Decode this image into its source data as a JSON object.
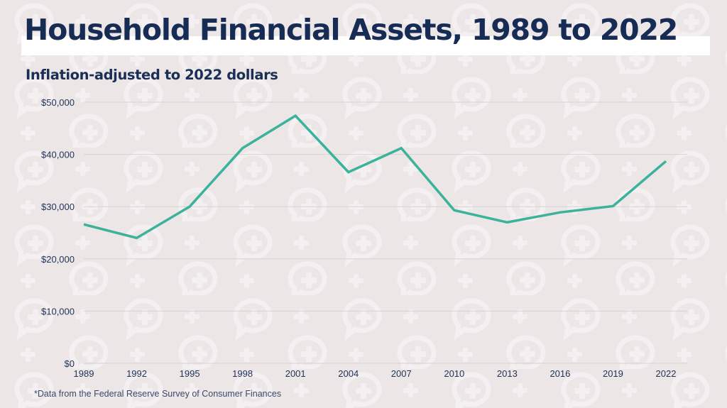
{
  "header": {
    "title": "Household Financial Assets, 1989 to 2022",
    "subtitle": "Inflation-adjusted to 2022 dollars"
  },
  "footnote": "*Data from the Federal Reserve Survey of Consumer Finances",
  "colors": {
    "background": "#ece6e7",
    "title": "#162c55",
    "line": "#3bb39a",
    "gridline": "#d8d2d3",
    "pattern": "#f4f0f0"
  },
  "chart_data": {
    "type": "line",
    "title": "Household Financial Assets, 1989 to 2022",
    "subtitle": "Inflation-adjusted to 2022 dollars",
    "xlabel": "",
    "ylabel": "",
    "categories": [
      "1989",
      "1992",
      "1995",
      "1998",
      "2001",
      "2004",
      "2007",
      "2010",
      "2013",
      "2016",
      "2019",
      "2022"
    ],
    "series": [
      {
        "name": "Household Financial Assets",
        "values": [
          26600,
          24000,
          30000,
          41200,
          47400,
          36600,
          41200,
          29300,
          27000,
          28900,
          30100,
          38700
        ]
      }
    ],
    "ylim": [
      0,
      50000
    ],
    "yticks": [
      0,
      10000,
      20000,
      30000,
      40000,
      50000
    ],
    "ytick_labels": [
      "$0",
      "$10,000",
      "$20,000",
      "$30,000",
      "$40,000",
      "$50,000"
    ],
    "grid": true,
    "legend": "none",
    "annotation": "*Data from the Federal Reserve Survey of Consumer Finances"
  }
}
